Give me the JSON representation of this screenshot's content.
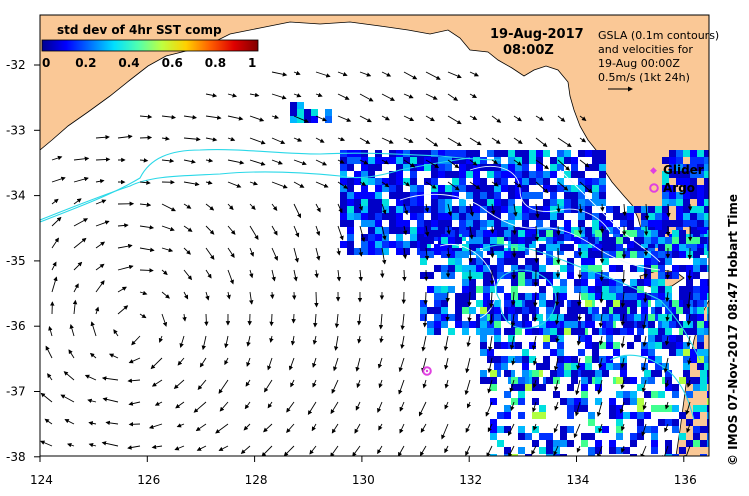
{
  "map": {
    "colorbar": {
      "title": "std dev of 4hr SST comp",
      "ticks": [
        "0",
        "0.2",
        "0.4",
        "0.6",
        "0.8",
        "1"
      ],
      "colors": [
        "#00008f",
        "#0000ff",
        "#0070ff",
        "#00dfff",
        "#50ffaf",
        "#bfff40",
        "#ffd000",
        "#ff6000",
        "#df0000",
        "#800000"
      ]
    },
    "date_line1": "19-Aug-2017",
    "date_line2": "08:00Z",
    "gsla_note": {
      "lines": [
        "GSLA (0.1m contours)",
        "and velocities for",
        "19-Aug 00:00Z",
        "0.5m/s (1kt 24h)"
      ]
    },
    "legend": {
      "glider": "Glider",
      "argo": "Argo",
      "glider_color": "#e040e0",
      "argo_color": "#e040e0"
    },
    "credit": "© IMOS 07-Nov-2017 08:47 Hobart Time",
    "lat_ticks": [
      "-32",
      "-33",
      "-34",
      "-35",
      "-36",
      "-37",
      "-38"
    ],
    "lon_ticks": [
      "124",
      "126",
      "128",
      "130",
      "132",
      "134",
      "136"
    ],
    "land_color": "#fac896",
    "contour_color": "#2ad8e8"
  }
}
